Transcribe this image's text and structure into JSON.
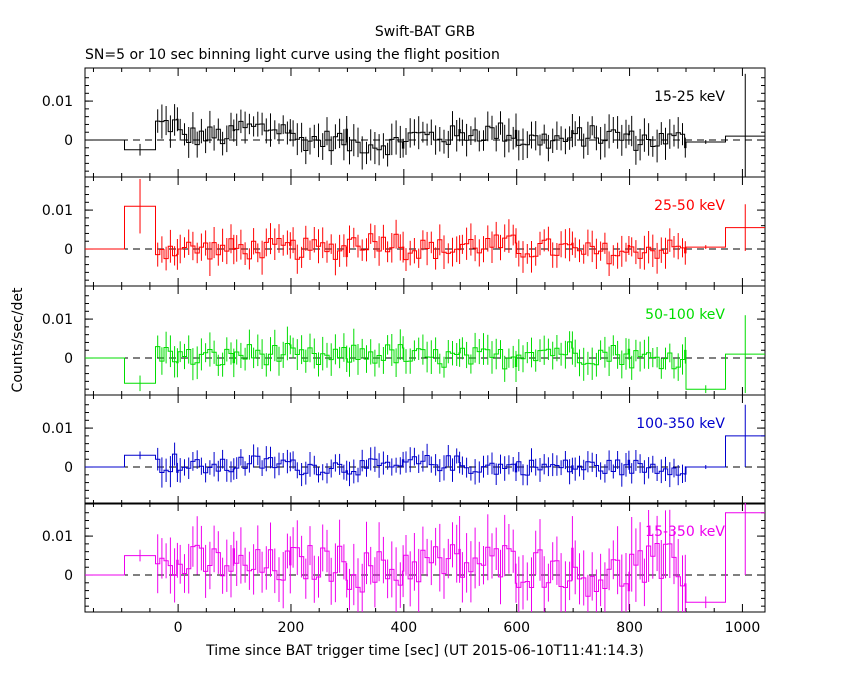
{
  "chart_data": {
    "type": "line",
    "title": "Swift-BAT GRB",
    "subtitle": "SN=5 or 10 sec binning light curve using the flight position",
    "xlabel": "Time since BAT trigger time [sec] (UT 2015-06-10T11:41:14.3)",
    "ylabel": "Counts/sec/det",
    "xlim": [
      -165,
      1040
    ],
    "ylim": [
      -0.0095,
      0.0185
    ],
    "x_ticks": [
      0,
      200,
      400,
      600,
      800,
      1000
    ],
    "x_tick_labels": [
      "0",
      "200",
      "400",
      "600",
      "800",
      "1000"
    ],
    "y_ticks": [
      0,
      0.01
    ],
    "y_tick_labels": [
      "0",
      "0.01"
    ],
    "grid": false,
    "reference_line": 0,
    "panels": [
      {
        "name": "15-25 keV",
        "color": "#000000",
        "bins": [
          {
            "x0": -165,
            "x1": -95,
            "y": 0.0,
            "err": 0.0
          },
          {
            "x0": -95,
            "x1": -40,
            "y": -0.0025,
            "err": 0.0015
          },
          {
            "x0": -40,
            "x1": 0,
            "y": 0.004,
            "err": 0.004
          },
          {
            "x0": 0,
            "x1": 100,
            "y": 0.001,
            "err": 0.004
          },
          {
            "x0": 100,
            "x1": 200,
            "y": 0.003,
            "err": 0.004
          },
          {
            "x0": 200,
            "x1": 300,
            "y": 0.0,
            "err": 0.004
          },
          {
            "x0": 300,
            "x1": 400,
            "y": -0.001,
            "err": 0.004
          },
          {
            "x0": 400,
            "x1": 500,
            "y": 0.001,
            "err": 0.004
          },
          {
            "x0": 500,
            "x1": 600,
            "y": 0.002,
            "err": 0.004
          },
          {
            "x0": 600,
            "x1": 700,
            "y": 0.0,
            "err": 0.004
          },
          {
            "x0": 700,
            "x1": 800,
            "y": 0.001,
            "err": 0.004
          },
          {
            "x0": 800,
            "x1": 900,
            "y": 0.0,
            "err": 0.004
          },
          {
            "x0": 900,
            "x1": 970,
            "y": -0.0005,
            "err": 0.0005
          },
          {
            "x0": 970,
            "x1": 1040,
            "y": 0.001,
            "err": 0.016
          }
        ]
      },
      {
        "name": "25-50 keV",
        "color": "#ff0000",
        "bins": [
          {
            "x0": -165,
            "x1": -95,
            "y": 0.0,
            "err": 0.0
          },
          {
            "x0": -95,
            "x1": -40,
            "y": 0.011,
            "err": 0.007
          },
          {
            "x0": -40,
            "x1": 0,
            "y": 0.0,
            "err": 0.004
          },
          {
            "x0": 0,
            "x1": 100,
            "y": 0.0,
            "err": 0.004
          },
          {
            "x0": 100,
            "x1": 200,
            "y": 0.0,
            "err": 0.004
          },
          {
            "x0": 200,
            "x1": 300,
            "y": 0.0,
            "err": 0.004
          },
          {
            "x0": 300,
            "x1": 400,
            "y": 0.002,
            "err": 0.004
          },
          {
            "x0": 400,
            "x1": 500,
            "y": 0.0,
            "err": 0.004
          },
          {
            "x0": 500,
            "x1": 600,
            "y": 0.001,
            "err": 0.004
          },
          {
            "x0": 600,
            "x1": 700,
            "y": 0.0,
            "err": 0.004
          },
          {
            "x0": 700,
            "x1": 800,
            "y": -0.001,
            "err": 0.004
          },
          {
            "x0": 800,
            "x1": 900,
            "y": 0.0,
            "err": 0.004
          },
          {
            "x0": 900,
            "x1": 970,
            "y": 0.0005,
            "err": 0.0005
          },
          {
            "x0": 970,
            "x1": 1040,
            "y": 0.0055,
            "err": 0.006
          }
        ]
      },
      {
        "name": "50-100 keV",
        "color": "#00dd00",
        "bins": [
          {
            "x0": -165,
            "x1": -95,
            "y": 0.0,
            "err": 0.0
          },
          {
            "x0": -95,
            "x1": -40,
            "y": -0.0065,
            "err": 0.002
          },
          {
            "x0": -40,
            "x1": 0,
            "y": 0.001,
            "err": 0.004
          },
          {
            "x0": 0,
            "x1": 100,
            "y": 0.0,
            "err": 0.004
          },
          {
            "x0": 100,
            "x1": 200,
            "y": 0.001,
            "err": 0.004
          },
          {
            "x0": 200,
            "x1": 300,
            "y": 0.0,
            "err": 0.004
          },
          {
            "x0": 300,
            "x1": 400,
            "y": 0.001,
            "err": 0.004
          },
          {
            "x0": 400,
            "x1": 500,
            "y": 0.0,
            "err": 0.004
          },
          {
            "x0": 500,
            "x1": 600,
            "y": 0.0,
            "err": 0.004
          },
          {
            "x0": 600,
            "x1": 700,
            "y": 0.002,
            "err": 0.004
          },
          {
            "x0": 700,
            "x1": 800,
            "y": 0.001,
            "err": 0.004
          },
          {
            "x0": 800,
            "x1": 900,
            "y": 0.0,
            "err": 0.004
          },
          {
            "x0": 900,
            "x1": 970,
            "y": -0.008,
            "err": 0.001
          },
          {
            "x0": 970,
            "x1": 1040,
            "y": 0.001,
            "err": 0.01
          }
        ]
      },
      {
        "name": "100-350 keV",
        "color": "#0000cc",
        "bins": [
          {
            "x0": -165,
            "x1": -95,
            "y": 0.0,
            "err": 0.0
          },
          {
            "x0": -95,
            "x1": -40,
            "y": 0.003,
            "err": 0.001
          },
          {
            "x0": -40,
            "x1": 0,
            "y": 0.001,
            "err": 0.004
          },
          {
            "x0": 0,
            "x1": 100,
            "y": 0.0,
            "err": 0.003
          },
          {
            "x0": 100,
            "x1": 200,
            "y": 0.001,
            "err": 0.003
          },
          {
            "x0": 200,
            "x1": 300,
            "y": 0.0,
            "err": 0.003
          },
          {
            "x0": 300,
            "x1": 400,
            "y": 0.0,
            "err": 0.003
          },
          {
            "x0": 400,
            "x1": 500,
            "y": 0.001,
            "err": 0.003
          },
          {
            "x0": 500,
            "x1": 600,
            "y": 0.0,
            "err": 0.003
          },
          {
            "x0": 600,
            "x1": 700,
            "y": 0.0,
            "err": 0.003
          },
          {
            "x0": 700,
            "x1": 800,
            "y": 0.0,
            "err": 0.003
          },
          {
            "x0": 800,
            "x1": 900,
            "y": 0.0,
            "err": 0.003
          },
          {
            "x0": 900,
            "x1": 970,
            "y": 0.0,
            "err": 0.0005
          },
          {
            "x0": 970,
            "x1": 1040,
            "y": 0.008,
            "err": 0.008
          }
        ]
      },
      {
        "name": "15-350 keV",
        "color": "#ee00ee",
        "bins": [
          {
            "x0": -165,
            "x1": -95,
            "y": 0.0,
            "err": 0.0
          },
          {
            "x0": -95,
            "x1": -40,
            "y": 0.005,
            "err": 0.0015
          },
          {
            "x0": -40,
            "x1": 0,
            "y": 0.002,
            "err": 0.007
          },
          {
            "x0": 0,
            "x1": 100,
            "y": 0.003,
            "err": 0.007
          },
          {
            "x0": 100,
            "x1": 200,
            "y": 0.002,
            "err": 0.007
          },
          {
            "x0": 200,
            "x1": 300,
            "y": 0.003,
            "err": 0.007
          },
          {
            "x0": 300,
            "x1": 400,
            "y": 0.001,
            "err": 0.008
          },
          {
            "x0": 400,
            "x1": 500,
            "y": 0.003,
            "err": 0.008
          },
          {
            "x0": 500,
            "x1": 600,
            "y": 0.003,
            "err": 0.008
          },
          {
            "x0": 600,
            "x1": 700,
            "y": 0.002,
            "err": 0.008
          },
          {
            "x0": 700,
            "x1": 800,
            "y": 0.0,
            "err": 0.008
          },
          {
            "x0": 800,
            "x1": 900,
            "y": 0.002,
            "err": 0.009
          },
          {
            "x0": 900,
            "x1": 970,
            "y": -0.007,
            "err": 0.0015
          },
          {
            "x0": 970,
            "x1": 1040,
            "y": 0.016,
            "err": 0.016
          }
        ]
      }
    ]
  }
}
